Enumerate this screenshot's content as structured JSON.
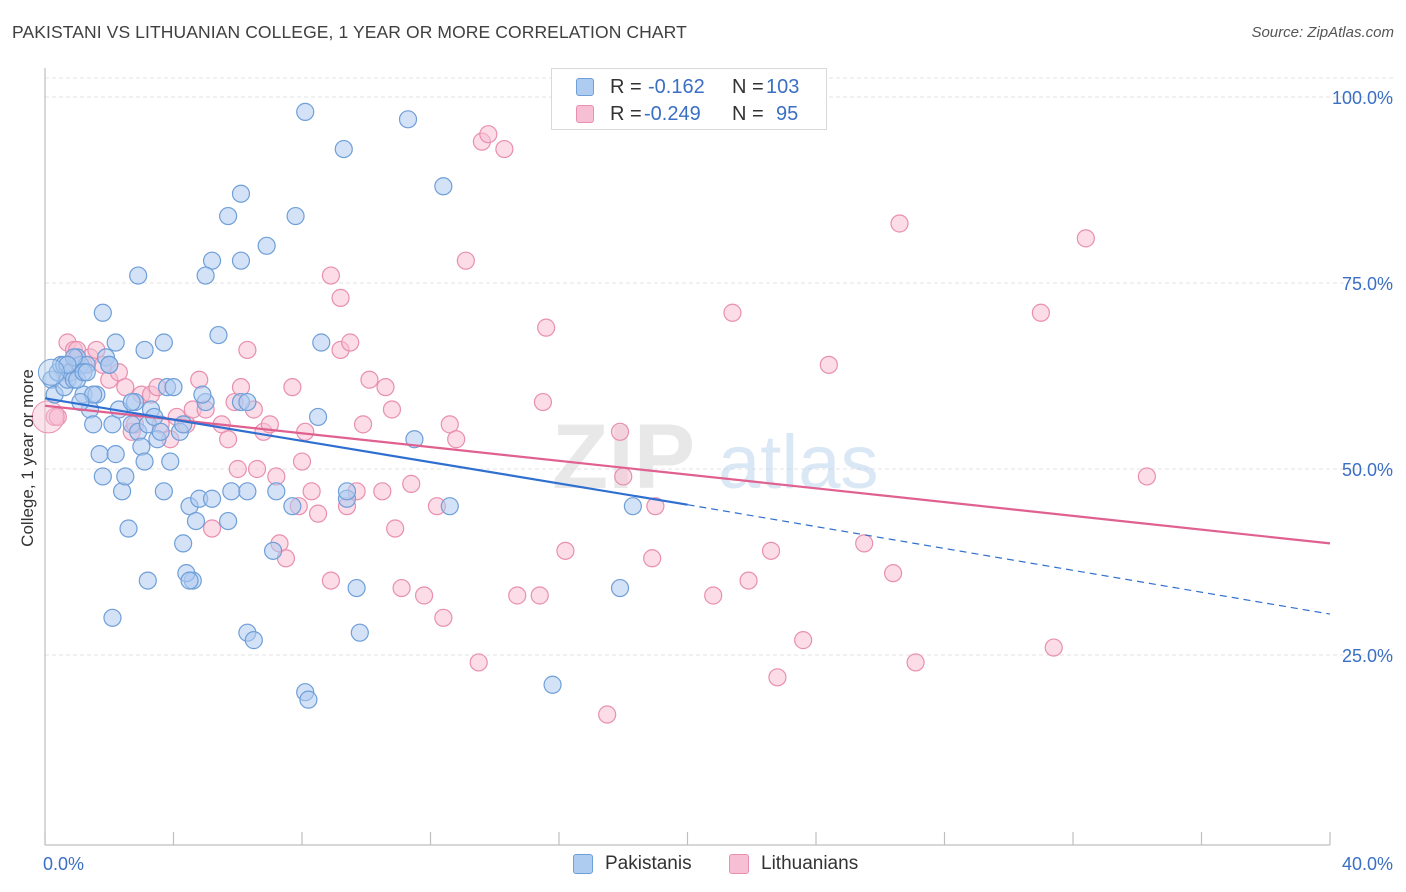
{
  "title": "PAKISTANI VS LITHUANIAN COLLEGE, 1 YEAR OR MORE CORRELATION CHART",
  "source": "Source: ZipAtlas.com",
  "colors": {
    "blue_fill": "#aecbf0",
    "blue_stroke": "#6f9fd8",
    "blue_line": "#2f6fd0",
    "pink_fill": "#f7bfd3",
    "pink_stroke": "#e98fb0",
    "pink_line": "#e0608f",
    "axis_label": "#3a6fc4",
    "grid": "#e3e3e3"
  },
  "legend": {
    "r_label": "R =",
    "n_label": "N =",
    "rows": [
      {
        "series": "Pakistanis",
        "r": "-0.162",
        "n": "103"
      },
      {
        "series": "Lithuanians",
        "r": "-0.249",
        "n": "95"
      }
    ]
  },
  "bottom_legend": [
    "Pakistanis",
    "Lithuanians"
  ],
  "watermark": {
    "zip": "ZIP",
    "atlas": "atlas"
  },
  "chart_data": {
    "type": "scatter",
    "title": "PAKISTANI VS LITHUANIAN COLLEGE, 1 YEAR OR MORE CORRELATION CHART",
    "xlabel": "",
    "ylabel": "College, 1 year or more",
    "xlim": [
      0,
      40
    ],
    "ylim": [
      0,
      105
    ],
    "x_tick_labels": [
      {
        "value": 0,
        "label": "0.0%"
      },
      {
        "value": 40,
        "label": "40.0%"
      }
    ],
    "y_tick_labels": [
      {
        "value": 100,
        "label": "100.0%"
      },
      {
        "value": 75,
        "label": "75.0%"
      },
      {
        "value": 50,
        "label": "50.0%"
      },
      {
        "value": 25,
        "label": "25.0%"
      }
    ],
    "grid": true,
    "series": [
      {
        "name": "Pakistanis",
        "r": -0.162,
        "n": 103,
        "trend": {
          "x0": 0,
          "y0": 59.5,
          "x1": 20,
          "y1": 45.2,
          "dash_to_x": 40,
          "dash_to_y": 30.5
        },
        "points": [
          [
            0.2,
            62
          ],
          [
            0.3,
            60
          ],
          [
            0.4,
            63
          ],
          [
            0.5,
            64
          ],
          [
            0.6,
            61
          ],
          [
            0.6,
            64
          ],
          [
            0.7,
            62
          ],
          [
            0.8,
            63
          ],
          [
            0.9,
            62
          ],
          [
            1.0,
            65
          ],
          [
            1.1,
            64
          ],
          [
            1.2,
            60
          ],
          [
            1.3,
            64
          ],
          [
            1.4,
            58
          ],
          [
            1.5,
            56
          ],
          [
            1.6,
            60
          ],
          [
            1.7,
            52
          ],
          [
            1.8,
            49
          ],
          [
            1.9,
            65
          ],
          [
            2.0,
            64
          ],
          [
            2.1,
            56
          ],
          [
            2.2,
            52
          ],
          [
            2.3,
            58
          ],
          [
            2.4,
            47
          ],
          [
            2.5,
            49
          ],
          [
            2.6,
            42
          ],
          [
            2.7,
            56
          ],
          [
            2.8,
            59
          ],
          [
            2.9,
            55
          ],
          [
            3.0,
            53
          ],
          [
            3.1,
            51
          ],
          [
            3.2,
            56
          ],
          [
            3.3,
            58
          ],
          [
            3.4,
            57
          ],
          [
            3.5,
            54
          ],
          [
            3.6,
            55
          ],
          [
            3.7,
            47
          ],
          [
            3.8,
            61
          ],
          [
            3.9,
            51
          ],
          [
            4.0,
            61
          ],
          [
            4.2,
            55
          ],
          [
            4.3,
            40
          ],
          [
            4.5,
            45
          ],
          [
            4.6,
            35
          ],
          [
            4.7,
            43
          ],
          [
            4.8,
            46
          ],
          [
            5.0,
            59
          ],
          [
            5.2,
            46
          ],
          [
            5.4,
            68
          ],
          [
            5.7,
            43
          ],
          [
            5.8,
            47
          ],
          [
            6.1,
            59
          ],
          [
            6.3,
            47
          ],
          [
            6.3,
            28
          ],
          [
            6.5,
            27
          ],
          [
            7.1,
            39
          ],
          [
            7.2,
            47
          ],
          [
            7.7,
            45
          ],
          [
            8.1,
            20
          ],
          [
            8.2,
            19
          ],
          [
            8.5,
            57
          ],
          [
            8.6,
            67
          ],
          [
            9.4,
            46
          ],
          [
            9.4,
            47
          ],
          [
            9.7,
            34
          ],
          [
            9.8,
            28
          ],
          [
            11.5,
            54
          ],
          [
            12.6,
            45
          ],
          [
            15.8,
            21
          ],
          [
            17.9,
            34
          ],
          [
            18.3,
            45
          ],
          [
            1.8,
            71
          ],
          [
            2.2,
            67
          ],
          [
            3.1,
            66
          ],
          [
            3.7,
            67
          ],
          [
            2.1,
            30
          ],
          [
            3.2,
            35
          ],
          [
            4.4,
            36
          ],
          [
            4.5,
            35
          ],
          [
            0.9,
            65
          ],
          [
            1.0,
            62
          ],
          [
            1.2,
            63
          ],
          [
            1.3,
            63
          ],
          [
            0.7,
            64
          ],
          [
            8.1,
            98
          ],
          [
            11.3,
            97
          ],
          [
            9.3,
            93
          ],
          [
            12.4,
            88
          ],
          [
            6.1,
            87
          ],
          [
            5.7,
            84
          ],
          [
            7.8,
            84
          ],
          [
            6.9,
            80
          ],
          [
            5.2,
            78
          ],
          [
            6.1,
            78
          ],
          [
            5.0,
            76
          ],
          [
            2.9,
            76
          ],
          [
            2.0,
            64
          ],
          [
            1.5,
            60
          ],
          [
            2.7,
            59
          ],
          [
            4.3,
            56
          ],
          [
            1.1,
            59
          ],
          [
            6.3,
            59
          ],
          [
            4.9,
            60
          ]
        ]
      },
      {
        "name": "Lithuanians",
        "r": -0.249,
        "n": 95,
        "trend": {
          "x0": 0,
          "y0": 58.5,
          "x1": 40,
          "y1": 40.0
        },
        "points": [
          [
            0.3,
            57
          ],
          [
            0.4,
            57
          ],
          [
            0.6,
            63
          ],
          [
            0.7,
            67
          ],
          [
            0.9,
            66
          ],
          [
            1.0,
            66
          ],
          [
            1.2,
            64
          ],
          [
            1.4,
            65
          ],
          [
            1.6,
            66
          ],
          [
            1.8,
            64
          ],
          [
            2.0,
            62
          ],
          [
            2.3,
            63
          ],
          [
            2.5,
            61
          ],
          [
            2.7,
            55
          ],
          [
            2.8,
            56
          ],
          [
            3.0,
            60
          ],
          [
            3.3,
            60
          ],
          [
            3.5,
            61
          ],
          [
            3.6,
            56
          ],
          [
            3.9,
            54
          ],
          [
            4.1,
            57
          ],
          [
            4.4,
            56
          ],
          [
            4.6,
            58
          ],
          [
            4.8,
            62
          ],
          [
            5.0,
            58
          ],
          [
            5.2,
            42
          ],
          [
            5.5,
            56
          ],
          [
            5.7,
            54
          ],
          [
            5.9,
            59
          ],
          [
            6.0,
            50
          ],
          [
            6.1,
            61
          ],
          [
            6.3,
            66
          ],
          [
            6.5,
            58
          ],
          [
            6.6,
            50
          ],
          [
            6.8,
            55
          ],
          [
            7.0,
            56
          ],
          [
            7.2,
            49
          ],
          [
            7.3,
            40
          ],
          [
            7.5,
            38
          ],
          [
            7.7,
            61
          ],
          [
            7.9,
            45
          ],
          [
            8.0,
            51
          ],
          [
            8.3,
            47
          ],
          [
            8.5,
            44
          ],
          [
            8.9,
            35
          ],
          [
            9.2,
            66
          ],
          [
            9.4,
            45
          ],
          [
            9.5,
            67
          ],
          [
            9.7,
            47
          ],
          [
            9.9,
            56
          ],
          [
            10.1,
            62
          ],
          [
            10.5,
            47
          ],
          [
            10.6,
            61
          ],
          [
            10.8,
            58
          ],
          [
            10.9,
            42
          ],
          [
            11.1,
            34
          ],
          [
            11.4,
            48
          ],
          [
            11.8,
            33
          ],
          [
            12.2,
            45
          ],
          [
            12.4,
            30
          ],
          [
            12.6,
            56
          ],
          [
            12.8,
            54
          ],
          [
            13.5,
            24
          ],
          [
            14.7,
            33
          ],
          [
            15.4,
            33
          ],
          [
            15.5,
            59
          ],
          [
            15.6,
            69
          ],
          [
            16.2,
            39
          ],
          [
            17.5,
            17
          ],
          [
            17.9,
            55
          ],
          [
            18.0,
            49
          ],
          [
            18.9,
            38
          ],
          [
            19.0,
            45
          ],
          [
            20.8,
            33
          ],
          [
            21.4,
            71
          ],
          [
            21.9,
            35
          ],
          [
            22.6,
            39
          ],
          [
            22.8,
            22
          ],
          [
            23.6,
            27
          ],
          [
            24.4,
            64
          ],
          [
            25.5,
            40
          ],
          [
            26.4,
            36
          ],
          [
            26.6,
            83
          ],
          [
            27.1,
            24
          ],
          [
            31.0,
            71
          ],
          [
            31.4,
            26
          ],
          [
            32.4,
            81
          ],
          [
            34.3,
            49
          ],
          [
            13.1,
            78
          ],
          [
            9.2,
            73
          ],
          [
            8.9,
            76
          ],
          [
            13.6,
            94
          ],
          [
            14.3,
            93
          ],
          [
            13.8,
            95
          ],
          [
            8.1,
            55
          ]
        ]
      }
    ]
  }
}
